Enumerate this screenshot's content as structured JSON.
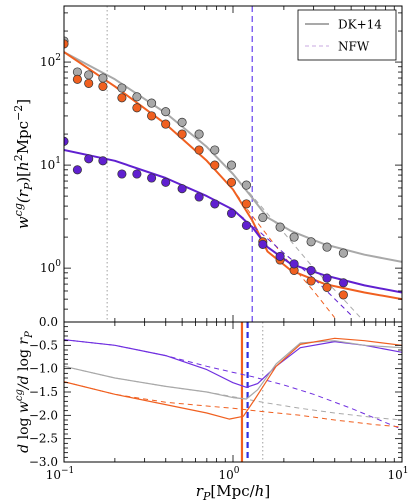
{
  "chart_data": [
    {
      "type": "line",
      "panel": "top",
      "ylabel": "w^cg(r_P)[h^2 Mpc^-2]",
      "xscale": "log",
      "yscale": "log",
      "xlim": [
        0.1,
        10
      ],
      "ylim": [
        0.3,
        350
      ],
      "y_tick_labels": [
        "10^0",
        "10^1",
        "10^2"
      ],
      "legend": {
        "position": "top-right",
        "entries": [
          {
            "label": "DK+14",
            "style": "solid",
            "color": "#a9a9a9"
          },
          {
            "label": "NFW",
            "style": "dashed",
            "color": "#c9a9e0"
          }
        ]
      },
      "vlines": [
        {
          "x": 0.18,
          "style": "dotted",
          "color": "#a0a0a0"
        },
        {
          "x": 1.3,
          "style": "dashed",
          "color": "#7b5cf0"
        }
      ],
      "series": [
        {
          "color": "#a9a9a9",
          "points": [
            [
              0.1,
              160
            ],
            [
              0.12,
              80
            ],
            [
              0.14,
              75
            ],
            [
              0.17,
              70
            ],
            [
              0.22,
              56
            ],
            [
              0.27,
              46
            ],
            [
              0.33,
              40
            ],
            [
              0.4,
              33
            ],
            [
              0.5,
              26
            ],
            [
              0.63,
              20
            ],
            [
              0.78,
              14
            ],
            [
              0.98,
              10
            ],
            [
              1.2,
              6.4
            ],
            [
              1.5,
              3.1
            ],
            [
              1.9,
              2.5
            ],
            [
              2.3,
              2.0
            ],
            [
              2.9,
              1.8
            ],
            [
              3.6,
              1.6
            ],
            [
              4.5,
              1.4
            ]
          ],
          "model": [
            [
              0.1,
              125
            ],
            [
              0.2,
              68
            ],
            [
              0.4,
              32
            ],
            [
              0.7,
              15
            ],
            [
              1.0,
              8.2
            ],
            [
              1.3,
              4.8
            ],
            [
              1.6,
              3.1
            ],
            [
              2.2,
              2.3
            ],
            [
              3.5,
              1.7
            ],
            [
              6,
              1.35
            ],
            [
              10,
              1.15
            ]
          ],
          "nfw": [
            [
              0.1,
              125
            ],
            [
              0.2,
              68
            ],
            [
              0.4,
              32
            ],
            [
              0.7,
              15
            ],
            [
              1.0,
              8.2
            ],
            [
              1.3,
              5.0
            ],
            [
              2,
              2.2
            ],
            [
              3,
              1.0
            ],
            [
              4.5,
              0.5
            ],
            [
              6,
              0.3
            ]
          ]
        },
        {
          "color": "#f06020",
          "points": [
            [
              0.1,
              150
            ],
            [
              0.12,
              68
            ],
            [
              0.14,
              62
            ],
            [
              0.17,
              58
            ],
            [
              0.22,
              45
            ],
            [
              0.27,
              36
            ],
            [
              0.33,
              30
            ],
            [
              0.4,
              25
            ],
            [
              0.5,
              20
            ],
            [
              0.63,
              14
            ],
            [
              0.78,
              10
            ],
            [
              0.98,
              6.8
            ],
            [
              1.2,
              4.2
            ],
            [
              1.5,
              1.8
            ],
            [
              1.9,
              1.2
            ],
            [
              2.3,
              0.95
            ],
            [
              2.9,
              0.75
            ],
            [
              3.6,
              0.65
            ],
            [
              4.5,
              0.55
            ]
          ],
          "model": [
            [
              0.1,
              125
            ],
            [
              0.2,
              58
            ],
            [
              0.4,
              25
            ],
            [
              0.7,
              11
            ],
            [
              1.0,
              5.8
            ],
            [
              1.3,
              2.9
            ],
            [
              1.6,
              1.45
            ],
            [
              2.2,
              0.95
            ],
            [
              3.5,
              0.7
            ],
            [
              6,
              0.58
            ],
            [
              10,
              0.5
            ]
          ],
          "nfw": [
            [
              0.1,
              125
            ],
            [
              0.2,
              58
            ],
            [
              0.4,
              25
            ],
            [
              0.7,
              11
            ],
            [
              1.0,
              5.8
            ],
            [
              1.3,
              3.2
            ],
            [
              2,
              1.3
            ],
            [
              3,
              0.6
            ],
            [
              4,
              0.33
            ]
          ]
        },
        {
          "color": "#6020d0",
          "points": [
            [
              0.1,
              17
            ],
            [
              0.12,
              9.0
            ],
            [
              0.14,
              11.5
            ],
            [
              0.17,
              11
            ],
            [
              0.22,
              8.2
            ],
            [
              0.27,
              8.2
            ],
            [
              0.33,
              7.5
            ],
            [
              0.4,
              6.8
            ],
            [
              0.5,
              5.9
            ],
            [
              0.63,
              4.9
            ],
            [
              0.78,
              4.2
            ],
            [
              0.98,
              3.4
            ],
            [
              1.2,
              2.6
            ],
            [
              1.5,
              1.7
            ],
            [
              1.9,
              1.3
            ],
            [
              2.3,
              1.1
            ],
            [
              2.9,
              0.95
            ],
            [
              3.6,
              0.8
            ],
            [
              4.5,
              0.72
            ]
          ],
          "model": [
            [
              0.1,
              14
            ],
            [
              0.2,
              11
            ],
            [
              0.4,
              7.5
            ],
            [
              0.7,
              5.0
            ],
            [
              1.0,
              3.7
            ],
            [
              1.3,
              2.5
            ],
            [
              1.6,
              1.6
            ],
            [
              2.2,
              1.1
            ],
            [
              3.5,
              0.85
            ],
            [
              6,
              0.68
            ],
            [
              10,
              0.58
            ]
          ],
          "nfw": [
            [
              0.1,
              14
            ],
            [
              0.2,
              11
            ],
            [
              0.4,
              7.5
            ],
            [
              0.7,
              5.0
            ],
            [
              1.0,
              3.7
            ],
            [
              1.3,
              2.6
            ],
            [
              2,
              1.4
            ],
            [
              3,
              0.8
            ],
            [
              5,
              0.35
            ]
          ]
        }
      ]
    },
    {
      "type": "line",
      "panel": "bottom",
      "xlabel": "r_P [Mpc/h]",
      "ylabel": "d log w^cg / d log r_P",
      "xscale": "log",
      "xlim": [
        0.1,
        10
      ],
      "ylim": [
        -3.0,
        0.0
      ],
      "x_tick_labels": [
        "10^-1",
        "10^0",
        "10^1"
      ],
      "y_tick_labels": [
        "0.0",
        "-0.5",
        "-1.0",
        "-1.5",
        "-2.0",
        "-2.5",
        "-3.0"
      ],
      "vlines": [
        {
          "x": 1.13,
          "style": "solid",
          "color": "#f06020"
        },
        {
          "x": 1.22,
          "style": "dashed",
          "color": "#3030e0"
        },
        {
          "x": 1.5,
          "style": "dotted",
          "color": "#a0a0a0"
        }
      ],
      "series": [
        {
          "color": "#7030e0",
          "model": [
            [
              0.1,
              -0.38
            ],
            [
              0.2,
              -0.5
            ],
            [
              0.4,
              -0.72
            ],
            [
              0.7,
              -1.02
            ],
            [
              1.0,
              -1.3
            ],
            [
              1.2,
              -1.4
            ],
            [
              1.4,
              -1.32
            ],
            [
              1.8,
              -0.95
            ],
            [
              2.5,
              -0.55
            ],
            [
              4,
              -0.42
            ],
            [
              6,
              -0.5
            ],
            [
              10,
              -0.65
            ]
          ],
          "nfw": [
            [
              0.1,
              -0.38
            ],
            [
              0.2,
              -0.5
            ],
            [
              0.4,
              -0.72
            ],
            [
              0.7,
              -0.95
            ],
            [
              1.0,
              -1.08
            ],
            [
              1.3,
              -1.17
            ],
            [
              2,
              -1.35
            ],
            [
              3,
              -1.55
            ],
            [
              5,
              -1.85
            ],
            [
              10,
              -2.3
            ]
          ]
        },
        {
          "color": "#a9a9a9",
          "model": [
            [
              0.1,
              -0.95
            ],
            [
              0.2,
              -1.2
            ],
            [
              0.4,
              -1.38
            ],
            [
              0.7,
              -1.5
            ],
            [
              1.0,
              -1.62
            ],
            [
              1.2,
              -1.65
            ],
            [
              1.4,
              -1.45
            ],
            [
              1.8,
              -0.9
            ],
            [
              2.5,
              -0.45
            ],
            [
              4,
              -0.4
            ],
            [
              6,
              -0.5
            ],
            [
              10,
              -0.55
            ]
          ],
          "nfw": [
            [
              0.1,
              -0.95
            ],
            [
              0.2,
              -1.2
            ],
            [
              0.4,
              -1.38
            ],
            [
              0.7,
              -1.5
            ],
            [
              1.0,
              -1.6
            ],
            [
              1.5,
              -1.72
            ],
            [
              2.5,
              -1.85
            ],
            [
              4,
              -1.95
            ],
            [
              7,
              -2.05
            ],
            [
              10,
              -2.1
            ]
          ]
        },
        {
          "color": "#f06020",
          "model": [
            [
              0.1,
              -1.28
            ],
            [
              0.2,
              -1.55
            ],
            [
              0.4,
              -1.77
            ],
            [
              0.7,
              -1.95
            ],
            [
              0.95,
              -2.08
            ],
            [
              1.15,
              -2.02
            ],
            [
              1.35,
              -1.65
            ],
            [
              1.8,
              -0.95
            ],
            [
              2.5,
              -0.48
            ],
            [
              4,
              -0.35
            ],
            [
              6,
              -0.4
            ],
            [
              10,
              -0.5
            ]
          ],
          "nfw": [
            [
              0.1,
              -1.28
            ],
            [
              0.2,
              -1.55
            ],
            [
              0.4,
              -1.72
            ],
            [
              0.7,
              -1.8
            ],
            [
              1.0,
              -1.85
            ],
            [
              1.5,
              -1.92
            ],
            [
              2.5,
              -2.0
            ],
            [
              4,
              -2.1
            ],
            [
              7,
              -2.2
            ],
            [
              10,
              -2.25
            ]
          ]
        }
      ]
    }
  ]
}
